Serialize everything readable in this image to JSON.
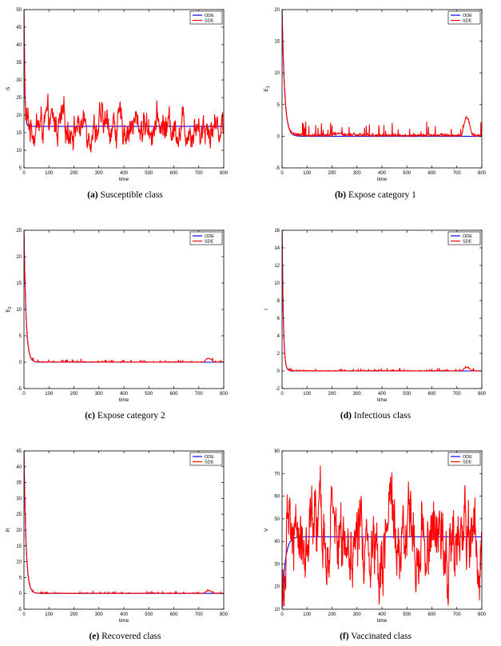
{
  "colors": {
    "ode": "#0000ff",
    "sde": "#ff0000",
    "axis": "#000000",
    "grid": "#bbbbbb"
  },
  "panels": [
    {
      "caption_tag": "(a)",
      "caption_text": "Susceptible class"
    },
    {
      "caption_tag": "(b)",
      "caption_text": "Expose category 1"
    },
    {
      "caption_tag": "(c)",
      "caption_text": "Expose category 2"
    },
    {
      "caption_tag": "(d)",
      "caption_text": "Infectious class"
    },
    {
      "caption_tag": "(e)",
      "caption_text": "Recovered class"
    },
    {
      "caption_tag": "(f)",
      "caption_text": "Vaccinated class"
    }
  ],
  "chart_data": [
    {
      "type": "line",
      "xlabel": "time",
      "ylabel": "S",
      "xlim": [
        0,
        800
      ],
      "ylim": [
        5,
        50
      ],
      "xticks": [
        "0",
        "100",
        "200",
        "300",
        "400",
        "500",
        "600",
        "700",
        "800"
      ],
      "yticks": [
        "5",
        "10",
        "15",
        "20",
        "25",
        "30",
        "35",
        "40",
        "45",
        "50"
      ],
      "legend_position": "top-right",
      "grid": false,
      "series": [
        {
          "name": "ODE",
          "color": "#0000ff",
          "initial": 50,
          "final": 16.8,
          "decay_time": 3
        },
        {
          "name": "SDE",
          "color": "#ff0000",
          "initial": 50,
          "final": 16.8,
          "decay_time": 3,
          "mean_level": 17,
          "noise_range": [
            9.5,
            25
          ]
        }
      ]
    },
    {
      "type": "line",
      "xlabel": "time",
      "ylabel": "E1",
      "xlim": [
        0,
        800
      ],
      "ylim": [
        -5,
        20
      ],
      "xticks": [
        "0",
        "100",
        "200",
        "300",
        "400",
        "500",
        "600",
        "700",
        "800"
      ],
      "yticks": [
        "-5",
        "0",
        "5",
        "10",
        "15",
        "20"
      ],
      "legend_position": "top-right",
      "grid": false,
      "series": [
        {
          "name": "ODE",
          "color": "#0000ff",
          "initial": 20,
          "final": 0,
          "decay_time": 10
        },
        {
          "name": "SDE",
          "color": "#ff0000",
          "initial": 20,
          "final": 0,
          "decay_time": 10,
          "mean_level": 0.2,
          "noise_range": [
            -0.5,
            4.5
          ]
        }
      ]
    },
    {
      "type": "line",
      "xlabel": "time",
      "ylabel": "E2",
      "xlim": [
        0,
        800
      ],
      "ylim": [
        -5,
        25
      ],
      "xticks": [
        "0",
        "100",
        "200",
        "300",
        "400",
        "500",
        "600",
        "700",
        "800"
      ],
      "yticks": [
        "-5",
        "0",
        "5",
        "10",
        "15",
        "20",
        "25"
      ],
      "legend_position": "top-right",
      "grid": false,
      "series": [
        {
          "name": "ODE",
          "color": "#0000ff",
          "initial": 25,
          "final": 0,
          "decay_time": 8
        },
        {
          "name": "SDE",
          "color": "#ff0000",
          "initial": 25,
          "final": 0,
          "decay_time": 8,
          "mean_level": 0,
          "noise_range": [
            -0.2,
            1
          ]
        }
      ]
    },
    {
      "type": "line",
      "xlabel": "time",
      "ylabel": "I",
      "xlim": [
        0,
        800
      ],
      "ylim": [
        -2,
        16
      ],
      "xticks": [
        "0",
        "100",
        "200",
        "300",
        "400",
        "500",
        "600",
        "700",
        "800"
      ],
      "yticks": [
        "-2",
        "0",
        "2",
        "4",
        "6",
        "8",
        "10",
        "12",
        "14",
        "16"
      ],
      "legend_position": "top-right",
      "grid": false,
      "series": [
        {
          "name": "ODE",
          "color": "#0000ff",
          "initial": 16,
          "final": 0,
          "decay_time": 5
        },
        {
          "name": "SDE",
          "color": "#ff0000",
          "initial": 16,
          "final": 0,
          "decay_time": 5,
          "mean_level": 0,
          "noise_range": [
            -0.1,
            0.6
          ]
        }
      ]
    },
    {
      "type": "line",
      "xlabel": "time",
      "ylabel": "R",
      "xlim": [
        0,
        800
      ],
      "ylim": [
        -5,
        45
      ],
      "xticks": [
        "0",
        "100",
        "200",
        "300",
        "400",
        "500",
        "600",
        "700",
        "800"
      ],
      "yticks": [
        "-5",
        "0",
        "5",
        "10",
        "15",
        "20",
        "25",
        "30",
        "35",
        "40",
        "45"
      ],
      "legend_position": "top-right",
      "grid": false,
      "series": [
        {
          "name": "ODE",
          "color": "#0000ff",
          "initial": 45,
          "final": 0,
          "decay_time": 8
        },
        {
          "name": "SDE",
          "color": "#ff0000",
          "initial": 45,
          "final": 0,
          "decay_time": 8,
          "mean_level": 0,
          "noise_range": [
            -0.3,
            1.2
          ]
        }
      ]
    },
    {
      "type": "line",
      "xlabel": "time",
      "ylabel": "V",
      "xlim": [
        0,
        800
      ],
      "ylim": [
        10,
        80
      ],
      "xticks": [
        "0",
        "100",
        "200",
        "300",
        "400",
        "500",
        "600",
        "700",
        "800"
      ],
      "yticks": [
        "10",
        "20",
        "30",
        "40",
        "50",
        "60",
        "70",
        "80"
      ],
      "legend_position": "top-right",
      "grid": false,
      "series": [
        {
          "name": "ODE",
          "color": "#0000ff",
          "initial": 10,
          "final": 42,
          "decay_time": 12
        },
        {
          "name": "SDE",
          "color": "#ff0000",
          "initial": 10,
          "final": 42,
          "decay_time": 12,
          "mean_level": 42,
          "noise_range": [
            15.5,
            73
          ]
        }
      ]
    }
  ]
}
